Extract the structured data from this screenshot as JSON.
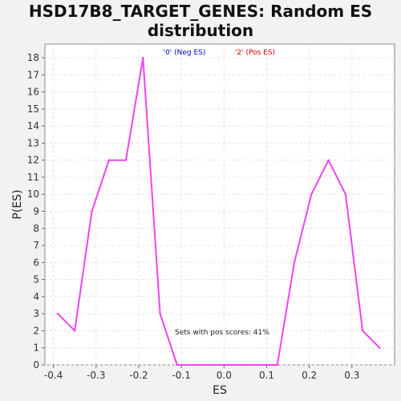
{
  "title": "HSD17B8_TARGET_GENES: Random ES distribution",
  "chart_data": {
    "type": "line",
    "xlabel": "ES",
    "ylabel": "P(ES)",
    "xlim": [
      -0.42,
      0.4
    ],
    "ylim": [
      0,
      18.8
    ],
    "xticks": [
      -0.4,
      -0.3,
      -0.2,
      -0.1,
      0.0,
      0.1,
      0.2,
      0.3
    ],
    "xtick_labels": [
      "-0.4",
      "-0.3",
      "-0.2",
      "-0.1",
      "0.0",
      "0.1",
      "0.2",
      "0.3"
    ],
    "yticks": [
      0,
      1,
      2,
      3,
      4,
      5,
      6,
      7,
      8,
      9,
      10,
      11,
      12,
      13,
      14,
      15,
      16,
      17,
      18
    ],
    "grid": true,
    "legend_position": "top",
    "legend": [
      {
        "label": "'0' (Neg ES)",
        "color": "#0000cc"
      },
      {
        "label": "'2' (Pos ES)",
        "color": "#cc0000"
      }
    ],
    "annotation": "Sets with pos scores: 41%",
    "series": [
      {
        "color": "#ee44ee",
        "x": [
          -0.39,
          -0.35,
          -0.31,
          -0.27,
          -0.23,
          -0.19,
          -0.15,
          -0.11,
          -0.07,
          -0.03,
          0.01,
          0.05,
          0.09,
          0.125,
          0.165,
          0.205,
          0.245,
          0.285,
          0.325,
          0.365
        ],
        "y": [
          3,
          2,
          9,
          12,
          12,
          18,
          3,
          0,
          0,
          0,
          0,
          0,
          0,
          0,
          6,
          10,
          12,
          10,
          2,
          1
        ]
      }
    ]
  }
}
